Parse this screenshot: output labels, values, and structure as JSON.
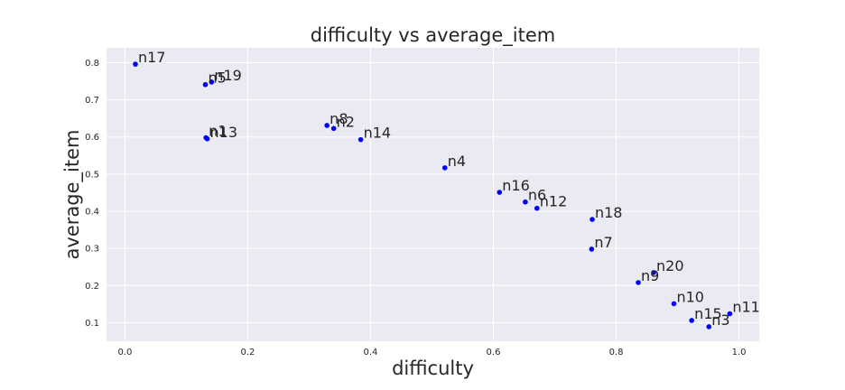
{
  "chart_data": {
    "type": "scatter",
    "title": "difficulty vs average_item",
    "xlabel": "difficulty",
    "ylabel": "average_item",
    "xlim": [
      -0.03,
      1.033
    ],
    "ylim": [
      0.05,
      0.84
    ],
    "xticks": [
      0.0,
      0.2,
      0.4,
      0.6,
      0.8,
      1.0
    ],
    "xtick_labels": [
      "0.0",
      "0.2",
      "0.4",
      "0.6",
      "0.8",
      "1.0"
    ],
    "yticks": [
      0.1,
      0.2,
      0.3,
      0.4,
      0.5,
      0.6,
      0.7,
      0.8
    ],
    "ytick_labels": [
      "0.1",
      "0.2",
      "0.3",
      "0.4",
      "0.5",
      "0.6",
      "0.7",
      "0.8"
    ],
    "grid": true,
    "point_color": "#0000ff",
    "background_color": "#eaeaf2",
    "points": [
      {
        "label": "n17",
        "x": 0.017,
        "y": 0.796
      },
      {
        "label": "n5",
        "x": 0.131,
        "y": 0.741
      },
      {
        "label": "n19",
        "x": 0.141,
        "y": 0.748
      },
      {
        "label": "n1",
        "x": 0.132,
        "y": 0.598
      },
      {
        "label": "n13",
        "x": 0.134,
        "y": 0.595
      },
      {
        "label": "n8",
        "x": 0.329,
        "y": 0.631
      },
      {
        "label": "n2",
        "x": 0.34,
        "y": 0.623
      },
      {
        "label": "n14",
        "x": 0.384,
        "y": 0.593
      },
      {
        "label": "n4",
        "x": 0.521,
        "y": 0.517
      },
      {
        "label": "n16",
        "x": 0.61,
        "y": 0.451
      },
      {
        "label": "n6",
        "x": 0.652,
        "y": 0.425
      },
      {
        "label": "n12",
        "x": 0.671,
        "y": 0.408
      },
      {
        "label": "n18",
        "x": 0.761,
        "y": 0.378
      },
      {
        "label": "n7",
        "x": 0.76,
        "y": 0.298
      },
      {
        "label": "n9",
        "x": 0.836,
        "y": 0.208
      },
      {
        "label": "n20",
        "x": 0.861,
        "y": 0.235
      },
      {
        "label": "n10",
        "x": 0.894,
        "y": 0.151
      },
      {
        "label": "n15",
        "x": 0.923,
        "y": 0.106
      },
      {
        "label": "n3",
        "x": 0.951,
        "y": 0.089
      },
      {
        "label": "n11",
        "x": 0.985,
        "y": 0.124
      }
    ]
  }
}
